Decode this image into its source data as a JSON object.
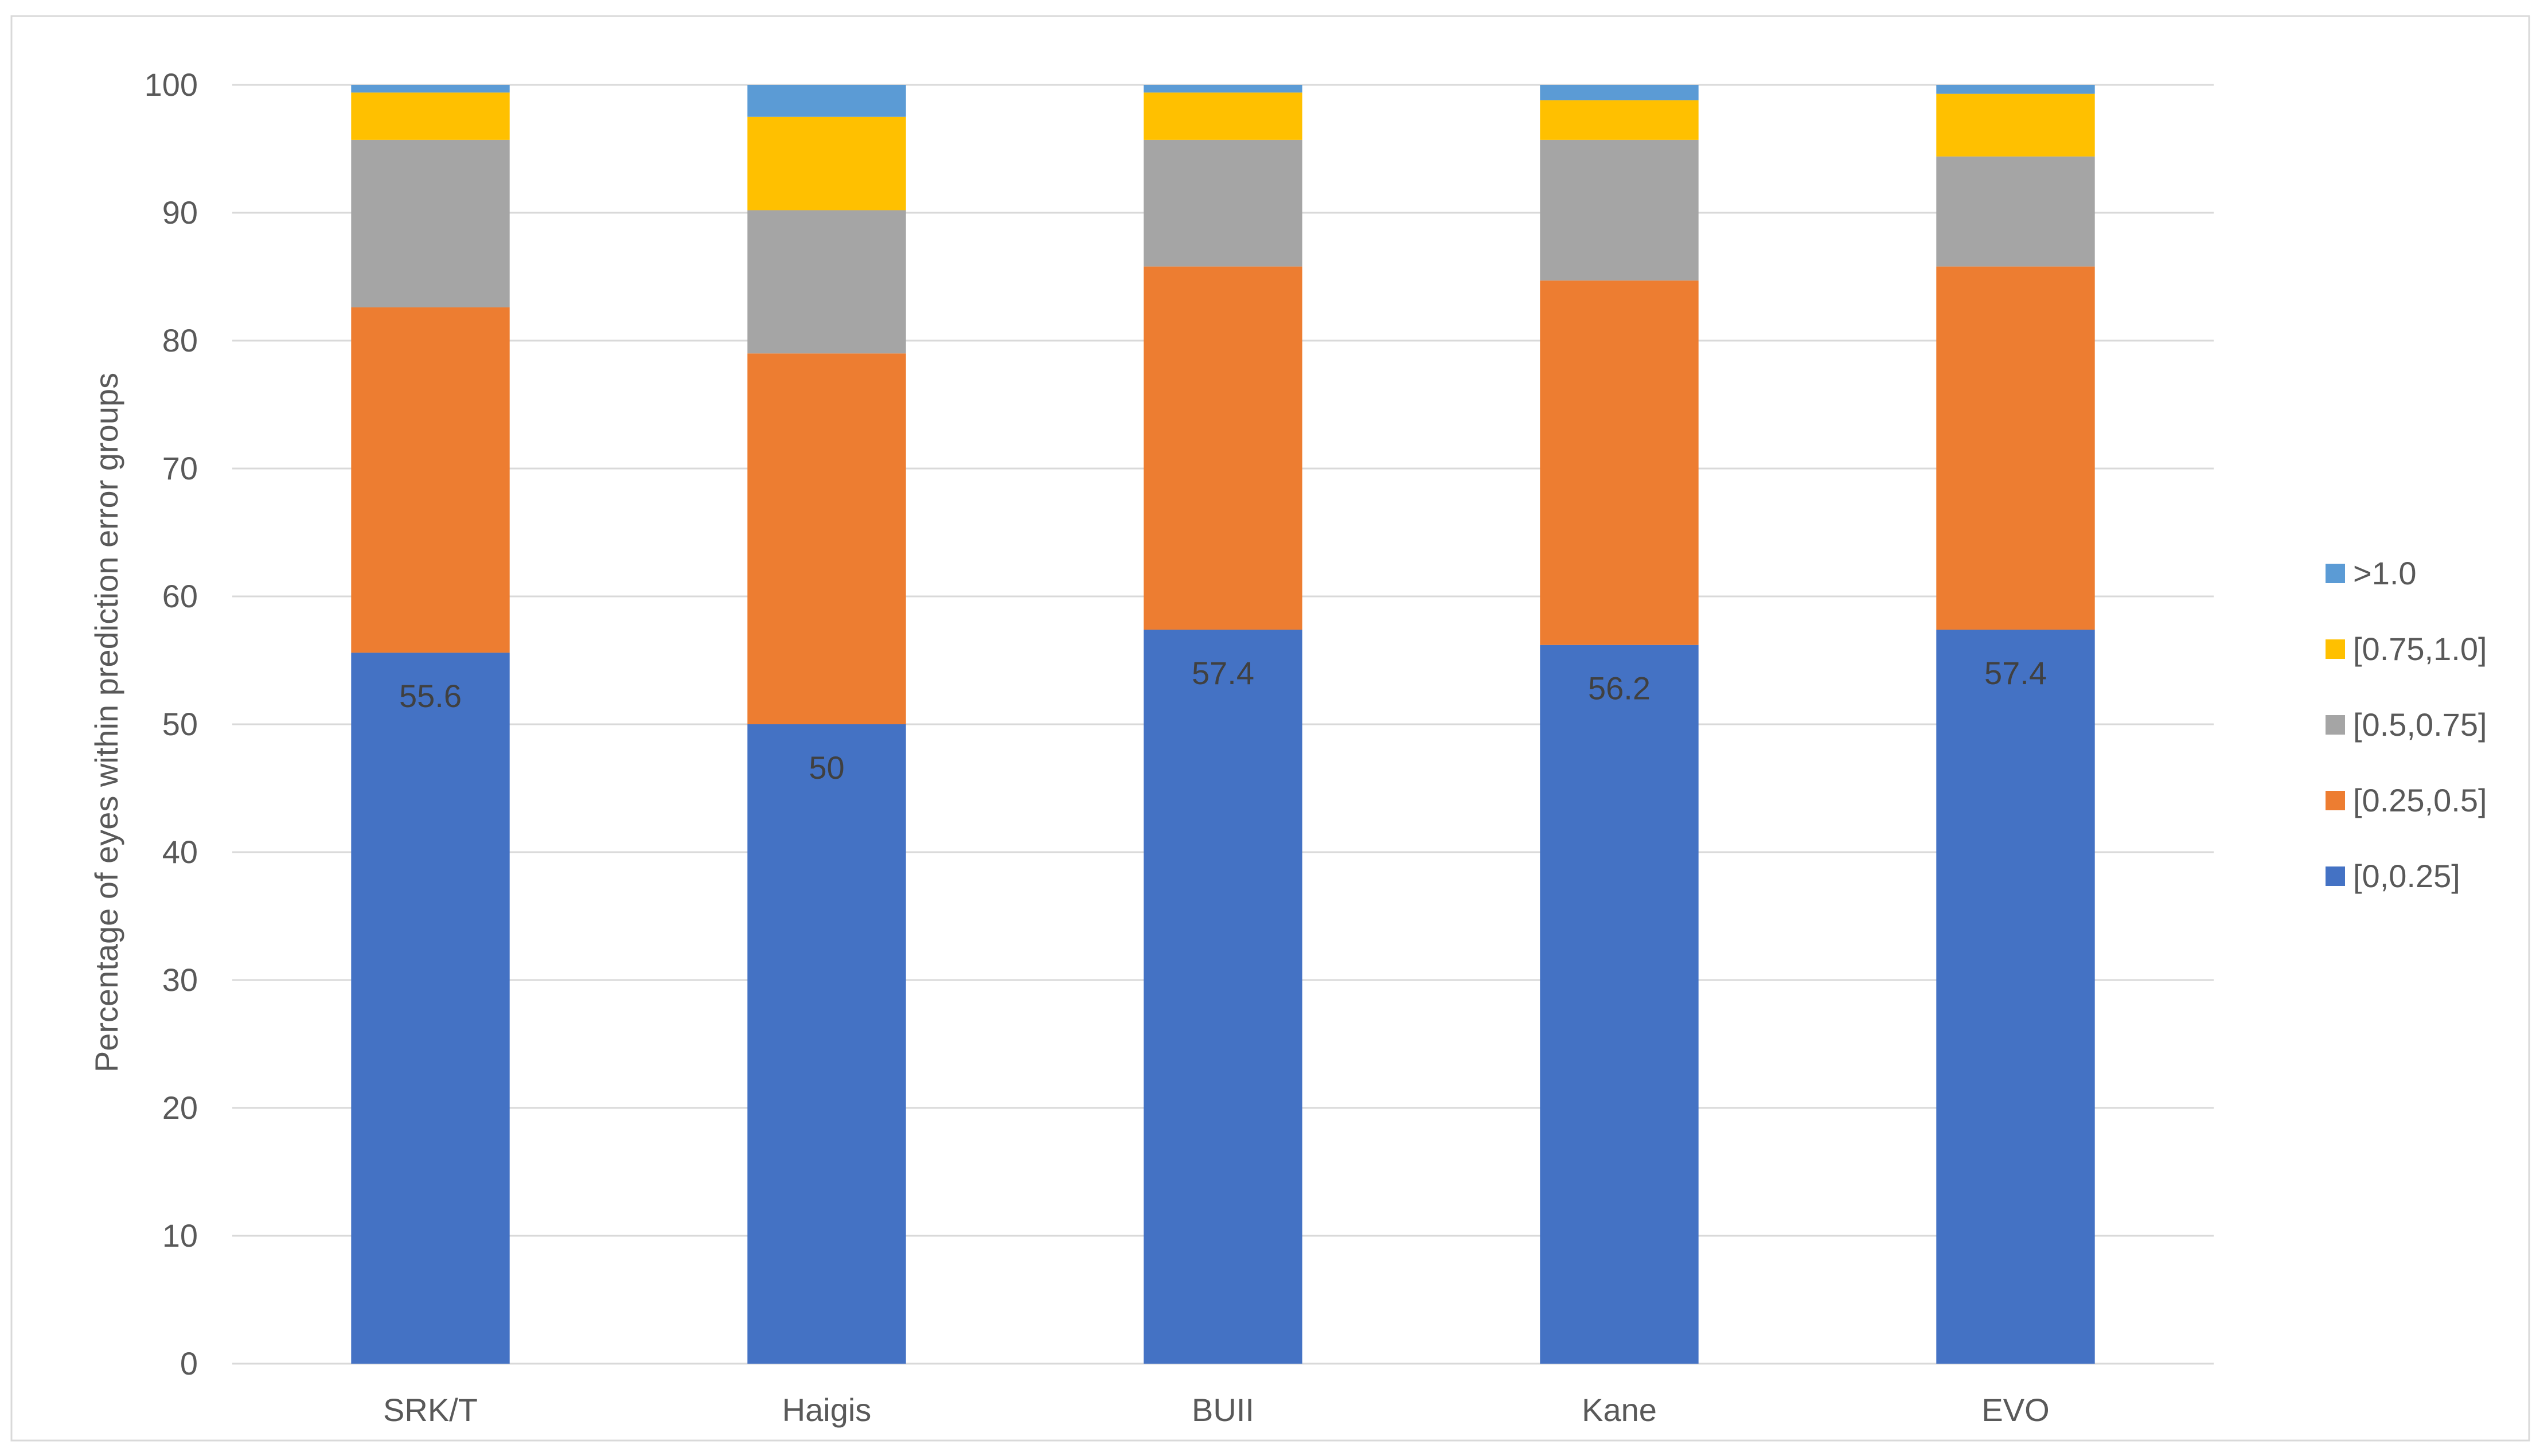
{
  "chart_data": {
    "type": "bar",
    "stacked": true,
    "categories": [
      "SRK/T",
      "Haigis",
      "BUII",
      "Kane",
      "EVO"
    ],
    "series": [
      {
        "name": "[0,0.25]",
        "color": "#4472C4",
        "values": [
          55.6,
          50.0,
          57.4,
          56.2,
          57.4
        ]
      },
      {
        "name": "[0.25,0.5]",
        "color": "#ED7D31",
        "values": [
          27.0,
          29.0,
          28.4,
          28.5,
          28.4
        ]
      },
      {
        "name": "[0.5,0.75]",
        "color": "#A5A5A5",
        "values": [
          13.1,
          11.2,
          9.9,
          11.0,
          8.6
        ]
      },
      {
        "name": "[0.75,1.0]",
        "color": "#FFC000",
        "values": [
          3.7,
          7.3,
          3.7,
          3.1,
          4.9
        ]
      },
      {
        "name": ">1.0",
        "color": "#5B9BD5",
        "values": [
          0.6,
          2.5,
          0.6,
          1.2,
          0.7
        ]
      }
    ],
    "data_labels": {
      "series": "[0,0.25]",
      "values": [
        "55.6",
        "50",
        "57.4",
        "56.2",
        "57.4"
      ]
    },
    "title": "",
    "xlabel": "",
    "ylabel": "Percentage of eyes within prediction error groups",
    "ylim": [
      0,
      100
    ],
    "yticks": [
      0,
      10,
      20,
      30,
      40,
      50,
      60,
      70,
      80,
      90,
      100
    ],
    "grid": true,
    "legend_position": "right",
    "legend_order": [
      ">1.0",
      "[0.75,1.0]",
      "[0.5,0.75]",
      "[0.25,0.5]",
      "[0,0.25]"
    ]
  }
}
